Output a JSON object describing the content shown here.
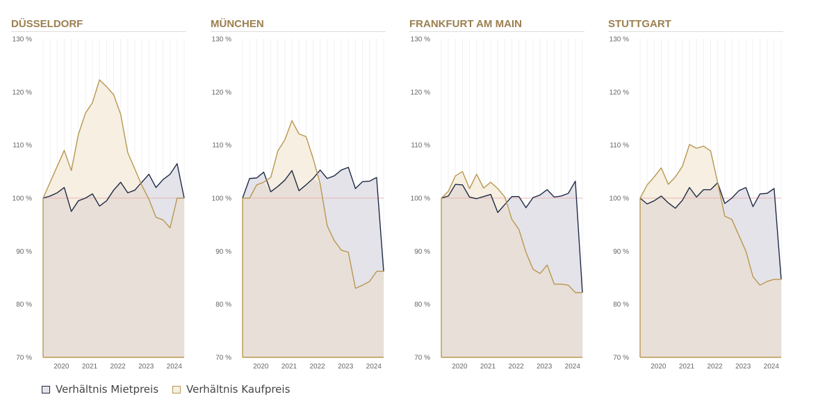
{
  "colors": {
    "title": "#9b7f4f",
    "miet_line": "#1f2a44",
    "miet_fill": "#e4e3ea",
    "kauf_line": "#b8974f",
    "kauf_fill": "#f6efe2",
    "overlap_fill": "#e8dfd8",
    "baseline": "#e8b4b0",
    "grid": "#f0f0f0",
    "tick": "#666666"
  },
  "legend": {
    "miet_label": "Verhältnis Mietpreis",
    "kauf_label": "Verhältnis Kaufpreis"
  },
  "chart_data": [
    {
      "type": "area",
      "title": "DÜSSELDORF",
      "x": [
        2019.85,
        2020.1,
        2020.35,
        2020.6,
        2020.85,
        2021.1,
        2021.35,
        2021.6,
        2021.85,
        2022.1,
        2022.35,
        2022.6,
        2022.85,
        2023.1,
        2023.35,
        2023.6,
        2023.85,
        2024.1,
        2024.35,
        2024.6,
        2024.85
      ],
      "x_ticks": [
        "2020",
        "2021",
        "2022",
        "2023",
        "2024"
      ],
      "y_ticks": [
        "70 %",
        "80 %",
        "90 %",
        "100 %",
        "110 %",
        "120 %",
        "130 %"
      ],
      "ylim": [
        70,
        130
      ],
      "baseline": 100,
      "series": [
        {
          "name": "Verhältnis Mietpreis",
          "values": [
            100,
            100.4,
            101,
            102,
            97.5,
            99.5,
            100,
            100.8,
            98.5,
            99.5,
            101.5,
            103,
            101,
            101.5,
            103,
            104.5,
            102,
            103.5,
            104.5,
            106.5,
            100
          ]
        },
        {
          "name": "Verhältnis Kaufpreis",
          "values": [
            100,
            103,
            106,
            109,
            105.2,
            112,
            116,
            118,
            122.3,
            121,
            119.5,
            115.8,
            108.6,
            105.5,
            102.4,
            99.8,
            96.4,
            95.9,
            94.4,
            100,
            100
          ]
        }
      ]
    },
    {
      "type": "area",
      "title": "MÜNCHEN",
      "x": [
        2019.85,
        2020.1,
        2020.35,
        2020.6,
        2020.85,
        2021.1,
        2021.35,
        2021.6,
        2021.85,
        2022.1,
        2022.35,
        2022.6,
        2022.85,
        2023.1,
        2023.35,
        2023.6,
        2023.85,
        2024.1,
        2024.35,
        2024.6,
        2024.85
      ],
      "x_ticks": [
        "2020",
        "2021",
        "2022",
        "2023",
        "2024"
      ],
      "y_ticks": [
        "70 %",
        "80 %",
        "90 %",
        "100 %",
        "110 %",
        "120 %",
        "130 %"
      ],
      "ylim": [
        70,
        130
      ],
      "baseline": 100,
      "series": [
        {
          "name": "Verhältnis Mietpreis",
          "values": [
            100,
            103.7,
            103.8,
            104.9,
            101.2,
            102.2,
            103.4,
            105.2,
            101.4,
            102.5,
            103.7,
            105.3,
            103.7,
            104.2,
            105.3,
            105.8,
            101.8,
            103.1,
            103.2,
            103.9,
            86.2
          ]
        },
        {
          "name": "Verhältnis Kaufpreis",
          "values": [
            100,
            100,
            102.5,
            103,
            103.9,
            108.9,
            111,
            114.6,
            112.1,
            111.6,
            107.5,
            102.7,
            94.8,
            92,
            90.2,
            89.8,
            83,
            83.6,
            84.3,
            86.2,
            86.2
          ]
        }
      ]
    },
    {
      "type": "area",
      "title": "FRANKFURT AM MAIN",
      "x": [
        2019.85,
        2020.1,
        2020.35,
        2020.6,
        2020.85,
        2021.1,
        2021.35,
        2021.6,
        2021.85,
        2022.1,
        2022.35,
        2022.6,
        2022.85,
        2023.1,
        2023.35,
        2023.6,
        2023.85,
        2024.1,
        2024.35,
        2024.6,
        2024.85
      ],
      "x_ticks": [
        "2020",
        "2021",
        "2022",
        "2023",
        "2024"
      ],
      "y_ticks": [
        "70 %",
        "80 %",
        "90 %",
        "100 %",
        "110 %",
        "120 %",
        "130 %"
      ],
      "ylim": [
        70,
        130
      ],
      "baseline": 100,
      "series": [
        {
          "name": "Verhältnis Mietpreis",
          "values": [
            100,
            100.4,
            102.6,
            102.5,
            100.2,
            99.9,
            100.3,
            100.7,
            97.3,
            98.8,
            100.3,
            100.3,
            98.2,
            100.1,
            100.6,
            101.6,
            100.2,
            100.4,
            100.9,
            103.2,
            82.2
          ]
        },
        {
          "name": "Verhältnis Kaufpreis",
          "values": [
            100,
            101.3,
            104.2,
            105,
            101.8,
            104.5,
            101.9,
            103,
            101.8,
            100.2,
            96,
            94.1,
            89.8,
            86.6,
            85.8,
            87.4,
            83.8,
            83.8,
            83.6,
            82.2,
            82.2
          ]
        }
      ]
    },
    {
      "type": "area",
      "title": "STUTTGART",
      "x": [
        2019.85,
        2020.1,
        2020.35,
        2020.6,
        2020.85,
        2021.1,
        2021.35,
        2021.6,
        2021.85,
        2022.1,
        2022.35,
        2022.6,
        2022.85,
        2023.1,
        2023.35,
        2023.6,
        2023.85,
        2024.1,
        2024.35,
        2024.6,
        2024.85
      ],
      "x_ticks": [
        "2020",
        "2021",
        "2022",
        "2023",
        "2024"
      ],
      "y_ticks": [
        "70 %",
        "80 %",
        "90 %",
        "100 %",
        "110 %",
        "120 %",
        "130 %"
      ],
      "ylim": [
        70,
        130
      ],
      "baseline": 100,
      "series": [
        {
          "name": "Verhältnis Mietpreis",
          "values": [
            100,
            98.9,
            99.5,
            100.4,
            99.1,
            98.1,
            99.6,
            102,
            100.2,
            101.6,
            101.6,
            102.9,
            99,
            100,
            101.4,
            102,
            98.4,
            100.8,
            100.9,
            101.8,
            84.7
          ]
        },
        {
          "name": "Verhältnis Kaufpreis",
          "values": [
            100,
            102.5,
            104,
            105.7,
            102.6,
            104,
            106,
            110.1,
            109.4,
            109.8,
            108.9,
            102.9,
            96.6,
            96,
            93,
            90,
            85.2,
            83.6,
            84.3,
            84.7,
            84.7
          ]
        }
      ]
    }
  ]
}
